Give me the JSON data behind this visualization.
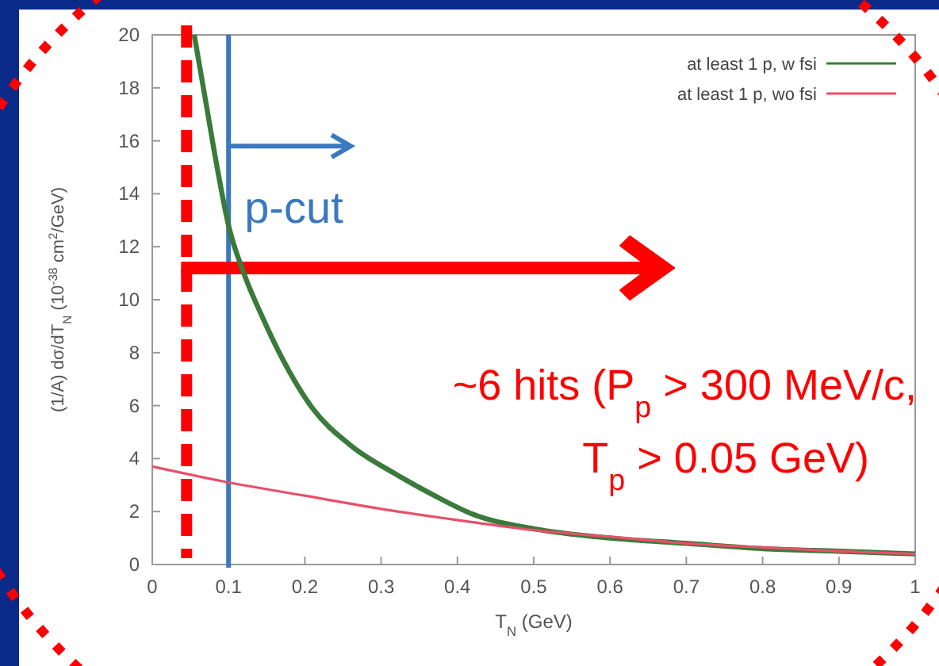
{
  "chart_data": {
    "type": "line",
    "xlabel": "T$_{N}$ (GeV)",
    "ylabel": "(1/A) dσ/dT$_{N}$ (10$^{-38}$ cm$^{2}$/GeV)",
    "xlim": [
      0,
      1
    ],
    "ylim": [
      0,
      20
    ],
    "xticks": [
      0,
      0.1,
      0.2,
      0.3,
      0.4,
      0.5,
      0.6,
      0.7,
      0.8,
      0.9,
      1
    ],
    "yticks": [
      0,
      2,
      4,
      6,
      8,
      10,
      12,
      14,
      16,
      18,
      20
    ],
    "grid": false,
    "legend": "top right",
    "marker": "none",
    "line_style": "solid",
    "series": [
      {
        "name": "at least 1 p, w fsi",
        "color": "#3a7a3a",
        "x": [
          0.055,
          0.07,
          0.085,
          0.1,
          0.12,
          0.145,
          0.17,
          0.21,
          0.26,
          0.32,
          0.37,
          0.42,
          0.5,
          0.6,
          0.7,
          0.8,
          0.9,
          1.0
        ],
        "values": [
          20,
          17.5,
          15,
          12.8,
          11,
          9.3,
          7.8,
          5.9,
          4.5,
          3.4,
          2.6,
          1.9,
          1.35,
          1.0,
          0.8,
          0.6,
          0.5,
          0.4
        ]
      },
      {
        "name": "at least 1 p, wo fsi",
        "color": "#e8506a",
        "x": [
          0,
          0.1,
          0.2,
          0.3,
          0.42,
          0.5,
          0.6,
          0.7,
          0.8,
          0.9,
          1.0
        ],
        "values": [
          3.7,
          3.1,
          2.6,
          2.1,
          1.6,
          1.3,
          1.05,
          0.8,
          0.65,
          0.5,
          0.4
        ]
      }
    ],
    "ref_lines": [
      {
        "axis": "x",
        "value": 0.1,
        "label": "p-cut",
        "color": "#3a78c0",
        "line_style": "solid"
      },
      {
        "axis": "x",
        "value": 0.045,
        "color": "#ff0000",
        "line_style": "dashed"
      }
    ],
    "annotations": [
      "~6 hits (P$_{p}$ > 300 MeV/c,",
      "T$_{p}$ > 0.05 GeV)"
    ]
  }
}
